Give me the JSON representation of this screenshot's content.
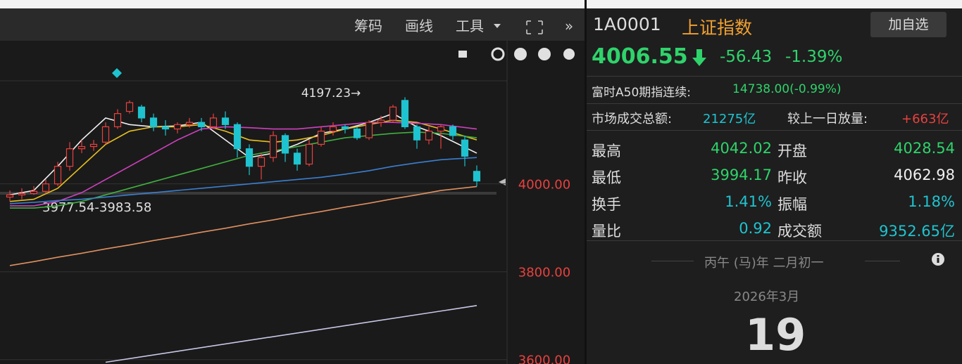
{
  "toolbar": {
    "items": [
      "筹码",
      "画线",
      "工具"
    ]
  },
  "chart_data": {
    "type": "candlestick",
    "open": [
      3970,
      3975,
      3978,
      3983,
      4000,
      4040,
      4080,
      4085,
      4095,
      4130,
      4165,
      4175,
      4150,
      4130,
      4125,
      4135,
      4140,
      4130,
      4150,
      4135,
      4080,
      4040,
      4060,
      4110,
      4070,
      4045,
      4090,
      4120,
      4130,
      4125,
      4105,
      4140,
      4145,
      4190,
      4130,
      4100,
      4120,
      4130,
      4100,
      4028.54
    ],
    "close": [
      3975,
      3978,
      3983,
      4000,
      4040,
      4080,
      4085,
      4090,
      4130,
      4160,
      4185,
      4150,
      4130,
      4125,
      4135,
      4140,
      4130,
      4150,
      4135,
      4080,
      4040,
      4060,
      4110,
      4070,
      4045,
      4090,
      4120,
      4130,
      4125,
      4105,
      4140,
      4145,
      4175,
      4130,
      4100,
      4120,
      4130,
      4110,
      4062.98,
      4006.55
    ],
    "high": [
      3985,
      3990,
      3995,
      4010,
      4050,
      4095,
      4100,
      4100,
      4140,
      4170,
      4190,
      4180,
      4160,
      4145,
      4140,
      4150,
      4150,
      4160,
      4165,
      4140,
      4090,
      4070,
      4120,
      4115,
      4080,
      4100,
      4130,
      4140,
      4135,
      4130,
      4145,
      4155,
      4180,
      4197.23,
      4135,
      4130,
      4135,
      4135,
      4110,
      4042.02
    ],
    "low": [
      3960,
      3965,
      3975,
      3977.54,
      3995,
      4030,
      4070,
      4075,
      4090,
      4125,
      4160,
      4140,
      4120,
      4110,
      4115,
      4128,
      4120,
      4125,
      4125,
      4060,
      4020,
      4010,
      4050,
      4050,
      4030,
      4040,
      4085,
      4110,
      4115,
      4100,
      4100,
      4130,
      4140,
      4125,
      4080,
      4090,
      4080,
      4100,
      4040,
      3994.17
    ],
    "up_color": "#e8413f",
    "down_color": "#1fc3cf",
    "lines": [
      {
        "color": "#f0f0f0",
        "x": [
          0,
          2,
          4,
          6,
          8,
          10,
          12,
          14,
          16,
          18,
          20,
          22,
          24,
          26,
          28,
          30,
          32,
          34,
          36,
          39
        ],
        "values": [
          3975,
          3985,
          4040,
          4100,
          4150,
          4135,
          4130,
          4132,
          4140,
          4100,
          4060,
          4070,
          4090,
          4115,
          4125,
          4140,
          4160,
          4130,
          4110,
          4070
        ]
      },
      {
        "color": "#e8c020",
        "x": [
          0,
          2,
          4,
          6,
          8,
          10,
          12,
          14,
          16,
          18,
          20,
          22,
          24,
          26,
          28,
          30,
          32,
          34,
          36,
          39
        ],
        "values": [
          3960,
          3965,
          3990,
          4040,
          4090,
          4120,
          4130,
          4130,
          4135,
          4120,
          4100,
          4095,
          4100,
          4110,
          4125,
          4135,
          4145,
          4140,
          4125,
          4100
        ]
      },
      {
        "color": "#d040c0",
        "x": [
          0,
          2,
          4,
          6,
          8,
          10,
          12,
          14,
          16,
          18,
          20,
          22,
          24,
          26,
          28,
          30,
          32,
          34,
          36,
          39
        ],
        "values": [
          3950,
          3950,
          3960,
          3980,
          4010,
          4040,
          4070,
          4100,
          4125,
          4130,
          4128,
          4125,
          4125,
          4130,
          4135,
          4140,
          4140,
          4138,
          4135,
          4125
        ]
      },
      {
        "color": "#40b040",
        "x": [
          0,
          2,
          4,
          6,
          8,
          10,
          12,
          14,
          16,
          18,
          20,
          22,
          24,
          26,
          28,
          30,
          32,
          34,
          36,
          39
        ],
        "values": [
          3945,
          3945,
          3950,
          3960,
          3975,
          3990,
          4005,
          4020,
          4035,
          4050,
          4065,
          4075,
          4085,
          4095,
          4105,
          4110,
          4115,
          4118,
          4115,
          4105
        ]
      },
      {
        "color": "#3a7fd0",
        "x": [
          0,
          2,
          4,
          6,
          8,
          10,
          12,
          14,
          16,
          18,
          20,
          22,
          24,
          26,
          28,
          30,
          32,
          34,
          36,
          39
        ],
        "values": [
          3955,
          3958,
          3962,
          3965,
          3970,
          3975,
          3980,
          3985,
          3990,
          3995,
          4000,
          4005,
          4010,
          4015,
          4022,
          4030,
          4040,
          4048,
          4055,
          4060
        ]
      },
      {
        "color": "#e09060",
        "x": [
          0,
          2,
          4,
          6,
          8,
          10,
          12,
          14,
          16,
          18,
          20,
          22,
          24,
          26,
          28,
          30,
          32,
          34,
          36,
          39
        ],
        "values": [
          3814,
          3823,
          3833,
          3842,
          3852,
          3861,
          3871,
          3880,
          3890,
          3899,
          3909,
          3918,
          3928,
          3937,
          3947,
          3956,
          3966,
          3975,
          3985,
          3994
        ]
      },
      {
        "color": "#c8c8e8",
        "x": [
          8,
          39
        ],
        "values": [
          3594,
          3723
        ]
      }
    ],
    "ylim": [
      3590,
      4265
    ],
    "yticks": [
      {
        "value": 4000,
        "label": "4000.00"
      },
      {
        "value": 3800,
        "label": "3800.00"
      },
      {
        "value": 3600,
        "label": "3600.00"
      }
    ],
    "tick_color": "#e8413f",
    "grid": true,
    "annotations": [
      {
        "text": "4197.23→"
      },
      {
        "text": "3977.54-3983.58"
      }
    ]
  },
  "quote": {
    "code": "1A0001",
    "name": "上证指数",
    "button": "加自选",
    "price": "4006.55",
    "change": "-56.43",
    "percent": "-1.39%"
  },
  "futures": {
    "label": "富时A50期指连续:",
    "value": "14738.00(-0.99%)"
  },
  "turnover": {
    "label": "市场成交总额:",
    "value": "21275亿",
    "diff_label": "较上一日放量:",
    "diff_value": "+663亿"
  },
  "stats": {
    "rows": [
      [
        "最高",
        "4042.02",
        "开盘",
        "4028.54"
      ],
      [
        "最低",
        "3994.17",
        "昨收",
        "4062.98"
      ],
      [
        "换手",
        "1.41%",
        "振幅",
        "1.18%"
      ],
      [
        "量比",
        "0.92",
        "成交额",
        "9352.65亿"
      ]
    ]
  },
  "calendar": {
    "lunar": "丙午 (马)年 二月初一",
    "month": "2026年3月",
    "day": "19"
  }
}
